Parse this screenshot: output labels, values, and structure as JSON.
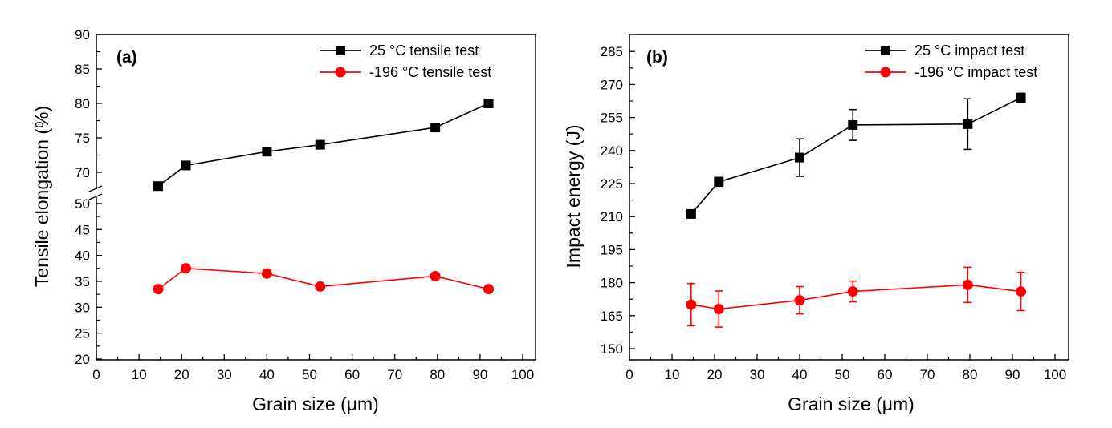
{
  "chart_data": [
    {
      "type": "line",
      "panel_label": "(a)",
      "xlabel": "Grain size (μm)",
      "ylabel": "Tensile elongation (%)",
      "xlim": [
        0,
        100
      ],
      "x_ticks": [
        "0",
        "10",
        "20",
        "30",
        "40",
        "50",
        "60",
        "70",
        "80",
        "90",
        "100"
      ],
      "y_axis_break": {
        "lower": [
          20,
          50
        ],
        "upper": [
          70,
          90
        ]
      },
      "y_ticks": [
        "20",
        "25",
        "30",
        "35",
        "40",
        "45",
        "50",
        "70",
        "75",
        "80",
        "85",
        "90"
      ],
      "legend_position": "top-right",
      "x": [
        14.5,
        21,
        40,
        52.5,
        79.5,
        92
      ],
      "series": [
        {
          "name": "25 °C tensile test",
          "color": "#000000",
          "marker": "square",
          "values": [
            68,
            71,
            73,
            74,
            76.5,
            80
          ]
        },
        {
          "name": "-196 °C tensile test",
          "color": "#ff0000",
          "marker": "circle",
          "values": [
            33.5,
            37.5,
            36.5,
            34,
            36,
            33.5
          ]
        }
      ]
    },
    {
      "type": "line",
      "panel_label": "(b)",
      "xlabel": "Grain size (μm)",
      "ylabel": "Impact energy (J)",
      "xlim": [
        0,
        100
      ],
      "ylim": [
        150,
        290
      ],
      "x_ticks": [
        "0",
        "10",
        "20",
        "30",
        "40",
        "50",
        "60",
        "70",
        "80",
        "90",
        "100"
      ],
      "y_ticks": [
        "150",
        "165",
        "180",
        "195",
        "210",
        "225",
        "240",
        "255",
        "270",
        "285"
      ],
      "legend_position": "top-right",
      "x": [
        14.5,
        21,
        40,
        52.5,
        79.5,
        92
      ],
      "series": [
        {
          "name": "25 °C impact test",
          "color": "#000000",
          "marker": "square",
          "values": [
            211.2,
            225.8,
            236.8,
            251.6,
            252,
            264
          ],
          "errors": [
            1,
            2,
            8.5,
            7,
            11.5,
            2
          ]
        },
        {
          "name": "-196 °C impact test",
          "color": "#ff0000",
          "marker": "circle",
          "values": [
            170,
            168,
            172,
            176,
            179,
            176
          ],
          "errors": [
            9.6,
            8.2,
            6.2,
            4.7,
            8,
            8.7
          ]
        }
      ]
    }
  ]
}
